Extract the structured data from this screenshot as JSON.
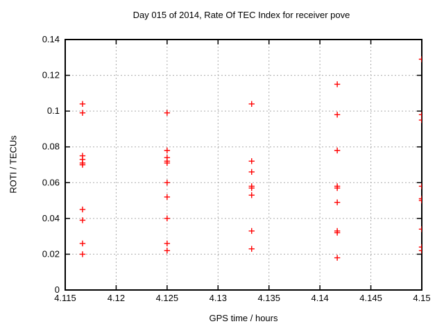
{
  "figure": {
    "title": "Day 015 of 2014, Rate Of TEC Index for receiver pove",
    "xlabel": "GPS time / hours",
    "ylabel": "ROTI / TECUs"
  },
  "chart_data": {
    "type": "scatter",
    "title": "Day 015 of 2014, Rate Of TEC Index for receiver pove",
    "xlabel": "GPS time / hours",
    "ylabel": "ROTI / TECUs",
    "xlim": [
      4.115,
      4.15
    ],
    "ylim": [
      0,
      0.14
    ],
    "xticks": [
      {
        "v": 4.115,
        "label": "4.115"
      },
      {
        "v": 4.12,
        "label": "4.12"
      },
      {
        "v": 4.125,
        "label": "4.125"
      },
      {
        "v": 4.13,
        "label": "4.13"
      },
      {
        "v": 4.135,
        "label": "4.135"
      },
      {
        "v": 4.14,
        "label": "4.14"
      },
      {
        "v": 4.145,
        "label": "4.145"
      },
      {
        "v": 4.15,
        "label": "4.15"
      }
    ],
    "yticks": [
      {
        "v": 0,
        "label": "0"
      },
      {
        "v": 0.02,
        "label": "0.02"
      },
      {
        "v": 0.04,
        "label": "0.04"
      },
      {
        "v": 0.06,
        "label": "0.06"
      },
      {
        "v": 0.08,
        "label": "0.08"
      },
      {
        "v": 0.1,
        "label": "0.1"
      },
      {
        "v": 0.12,
        "label": "0.12"
      },
      {
        "v": 0.14,
        "label": "0.14"
      }
    ],
    "grid": true,
    "legend": false,
    "marker": "plus",
    "colors": {
      "points": "#ff0000",
      "grid": "#ababab",
      "axis": "#000000",
      "text": "#000000",
      "background": "#ffffff"
    },
    "series": [
      {
        "name": "ROTI",
        "groups": [
          {
            "x": 4.1167,
            "y": [
              0.104,
              0.099,
              0.075,
              0.073,
              0.071,
              0.07,
              0.045,
              0.039,
              0.026,
              0.02
            ]
          },
          {
            "x": 4.125,
            "y": [
              0.099,
              0.078,
              0.074,
              0.072,
              0.071,
              0.06,
              0.052,
              0.04,
              0.026,
              0.022
            ]
          },
          {
            "x": 4.1333,
            "y": [
              0.104,
              0.072,
              0.066,
              0.058,
              0.057,
              0.053,
              0.033,
              0.023
            ]
          },
          {
            "x": 4.1417,
            "y": [
              0.115,
              0.098,
              0.078,
              0.058,
              0.057,
              0.049,
              0.033,
              0.032,
              0.018
            ]
          },
          {
            "x": 4.15,
            "y": [
              0.129,
              0.098,
              0.095,
              0.058,
              0.051,
              0.05,
              0.034,
              0.024,
              0.022
            ]
          }
        ]
      }
    ]
  }
}
